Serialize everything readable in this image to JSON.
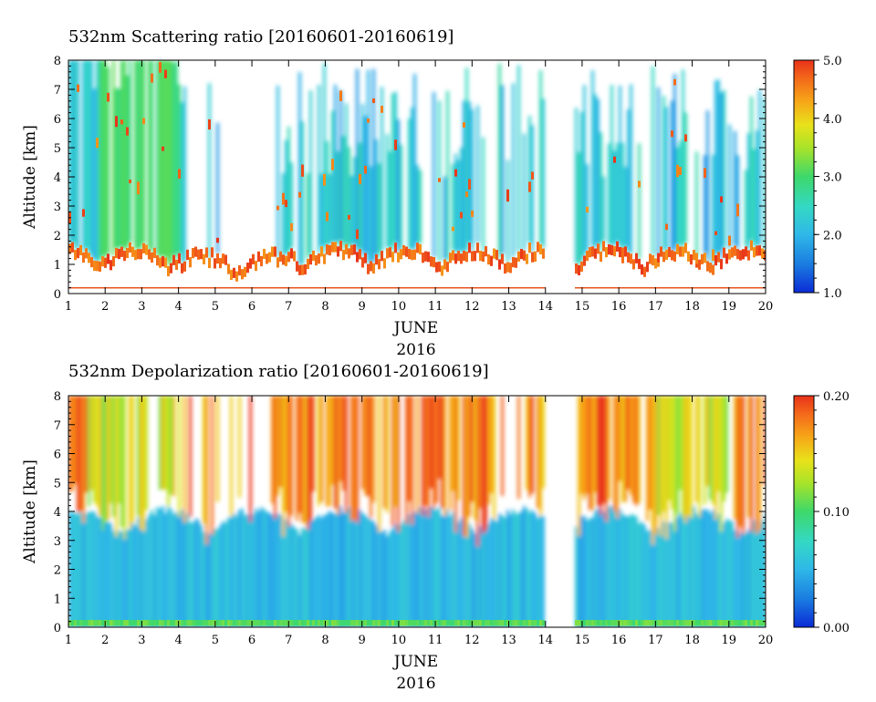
{
  "chart_data": [
    {
      "type": "heatmap",
      "title": "532nm Scattering ratio [20160601-20160619]",
      "ylabel": "Altitude [km]",
      "xlabel": "JUNE",
      "xlabel2": "2016",
      "xlim": [
        1,
        20
      ],
      "ylim": [
        0,
        8
      ],
      "x_ticks": [
        "1",
        "2",
        "3",
        "4",
        "5",
        "6",
        "7",
        "8",
        "9",
        "10",
        "11",
        "12",
        "13",
        "14",
        "15",
        "16",
        "17",
        "18",
        "19",
        "20"
      ],
      "y_ticks": [
        "0",
        "1",
        "2",
        "3",
        "4",
        "5",
        "6",
        "7",
        "8"
      ],
      "data_gap": [
        14,
        14.8
      ],
      "colorbar": {
        "range": [
          1.0,
          5.0
        ],
        "ticks": [
          "1.0",
          "2.0",
          "3.0",
          "4.0",
          "5.0"
        ]
      }
    },
    {
      "type": "heatmap",
      "title": "532nm Depolarization ratio [20160601-20160619]",
      "ylabel": "Altitude [km]",
      "xlabel": "JUNE",
      "xlabel2": "2016",
      "xlim": [
        1,
        20
      ],
      "ylim": [
        0,
        8
      ],
      "x_ticks": [
        "1",
        "2",
        "3",
        "4",
        "5",
        "6",
        "7",
        "8",
        "9",
        "10",
        "11",
        "12",
        "13",
        "14",
        "15",
        "16",
        "17",
        "18",
        "19",
        "20"
      ],
      "y_ticks": [
        "0",
        "1",
        "2",
        "3",
        "4",
        "5",
        "6",
        "7",
        "8"
      ],
      "data_gap": [
        14,
        14.8
      ],
      "colorbar": {
        "range": [
          0.0,
          0.2
        ],
        "ticks": [
          "0.00",
          "0.10",
          "0.20"
        ]
      }
    }
  ]
}
